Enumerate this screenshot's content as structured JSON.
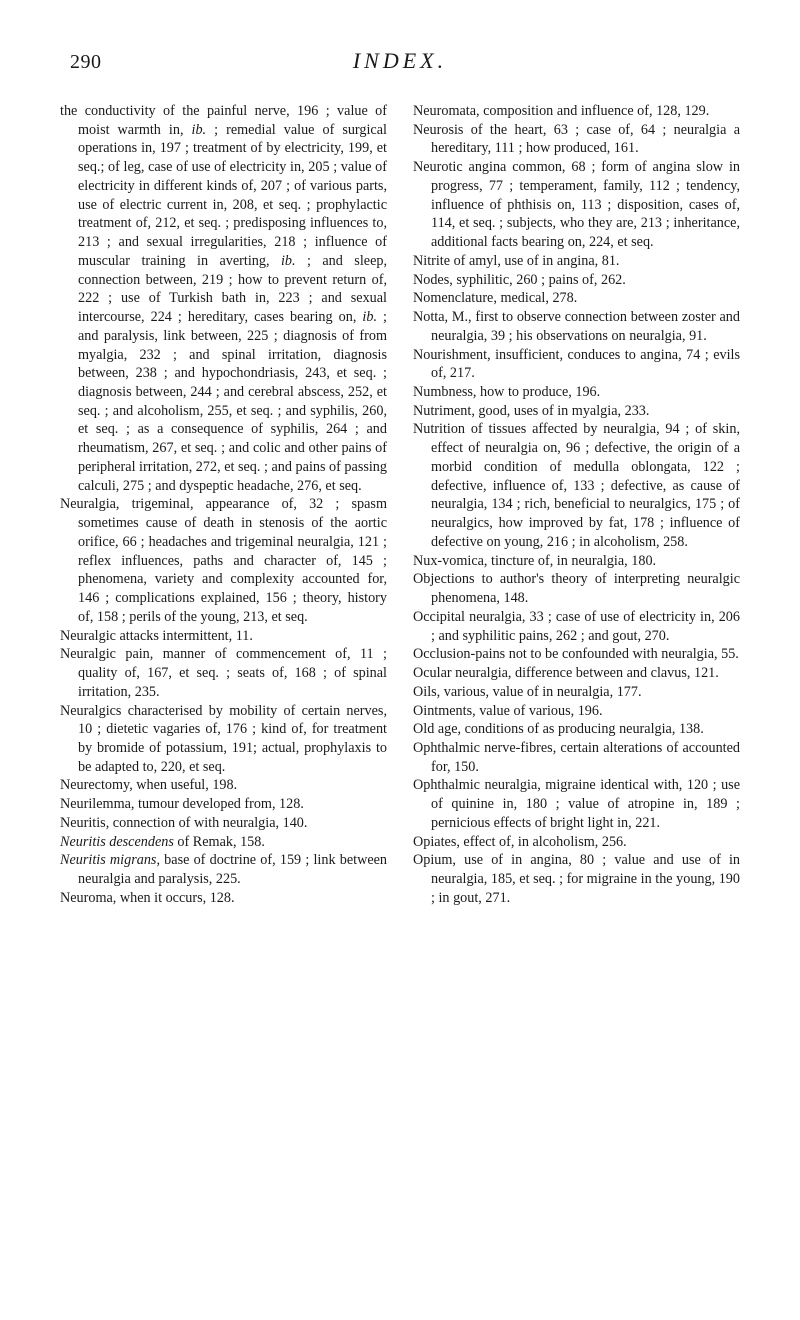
{
  "page_number": "290",
  "running_head": "INDEX.",
  "entries_col": [
    "the conductivity of the painful nerve, 196 ; value of moist warmth in, ib. ; remedial value of surgical operations in, 197 ; treatment of by electricity, 199, et seq.; of leg, case of use of electricity in, 205 ; value of electricity in different kinds of, 207 ; of various parts, use of electric current in, 208, et seq. ; prophylactic treatment of, 212, et seq. ; predisposing influences to, 213 ; and sexual irregularities, 218 ; influence of muscular training in averting, ib. ; and sleep, connection between, 219 ; how to prevent return of, 222 ; use of Turkish bath in, 223 ; and sexual intercourse, 224 ; hereditary, cases bearing on, ib. ; and paralysis, link between, 225 ; diagnosis of from myalgia, 232 ; and spinal irritation, diagnosis between, 238 ; and hypochondriasis, 243, et seq. ; diagnosis between, 244 ; and cerebral abscess, 252, et seq. ; and alcoholism, 255, et seq. ; and syphilis, 260, et seq. ; as a consequence of syphilis, 264 ; and rheumatism, 267, et seq. ; and colic and other pains of peripheral irritation, 272, et seq. ; and pains of passing calculi, 275 ; and dyspeptic headache, 276, et seq.",
    "Neuralgia, trigeminal, appearance of, 32 ; spasm sometimes cause of death in stenosis of the aortic orifice, 66 ; headaches and trigeminal neuralgia, 121 ; reflex influences, paths and character of, 145 ; phenomena, variety and complexity accounted for, 146 ; complications explained, 156 ; theory, history of, 158 ; perils of the young, 213, et seq.",
    "Neuralgic attacks intermittent, 11.",
    "Neuralgic pain, manner of commencement of, 11 ; quality of, 167, et seq. ; seats of, 168 ; of spinal irritation, 235.",
    "Neuralgics characterised by mobility of certain nerves, 10 ; dietetic vagaries of, 176 ; kind of, for treatment by bromide of potassium, 191; actual, prophylaxis to be adapted to, 220, et seq.",
    "Neurectomy, when useful, 198.",
    "Neurilemma, tumour developed from, 128.",
    "Neuritis, connection of with neuralgia, 140.",
    "Neuritis descendens of Remak, 158.",
    "Neuritis migrans, base of doctrine of, 159 ; link between neuralgia and paralysis, 225.",
    "Neuroma, when it occurs, 128.",
    "Neuromata, composition and influence of, 128, 129.",
    "Neurosis of the heart, 63 ; case of, 64 ; neuralgia a hereditary, 111 ; how produced, 161.",
    "Neurotic angina common, 68 ; form of angina slow in progress, 77 ; temperament, family, 112 ; tendency, influence of phthisis on, 113 ; disposition, cases of, 114, et seq. ; subjects, who they are, 213 ; inheritance, additional facts bearing on, 224, et seq.",
    "Nitrite of amyl, use of in angina, 81.",
    "Nodes, syphilitic, 260 ; pains of, 262.",
    "Nomenclature, medical, 278.",
    "Notta, M., first to observe connection between zoster and neuralgia, 39 ; his observations on neuralgia, 91.",
    "Nourishment, insufficient, conduces to angina, 74 ; evils of, 217.",
    "Numbness, how to produce, 196.",
    "Nutriment, good, uses of in myalgia, 233.",
    "Nutrition of tissues affected by neuralgia, 94 ; of skin, effect of neuralgia on, 96 ; defective, the origin of a morbid condition of medulla oblongata, 122 ; defective, influence of, 133 ; defective, as cause of neuralgia, 134 ; rich, beneficial to neuralgics, 175 ; of neuralgics, how improved by fat, 178 ; influence of defective on young, 216 ; in alcoholism, 258.",
    "Nux-vomica, tincture of, in neuralgia, 180.",
    "Objections to author's theory of interpreting neuralgic phenomena, 148.",
    "Occipital neuralgia, 33 ; case of use of electricity in, 206 ; and syphilitic pains, 262 ; and gout, 270.",
    "Occlusion-pains not to be confounded with neuralgia, 55.",
    "Ocular neuralgia, difference between and clavus, 121.",
    "Oils, various, value of in neuralgia, 177.",
    "Ointments, value of various, 196.",
    "Old age, conditions of as producing neuralgia, 138.",
    "Ophthalmic nerve-fibres, certain alterations of accounted for, 150.",
    "Ophthalmic neuralgia, migraine identical with, 120 ; use of quinine in, 180 ; value of atropine in, 189 ; pernicious effects of bright light in, 221.",
    "Opiates, effect of, in alcoholism, 256.",
    "Opium, use of in angina, 80 ; value and use of in neuralgia, 185, et seq. ; for migraine in the young, 190 ; in gout, 271."
  ],
  "italic_phrases": [
    "ib.",
    "Neuritis descendens",
    "Neuritis migrans"
  ]
}
